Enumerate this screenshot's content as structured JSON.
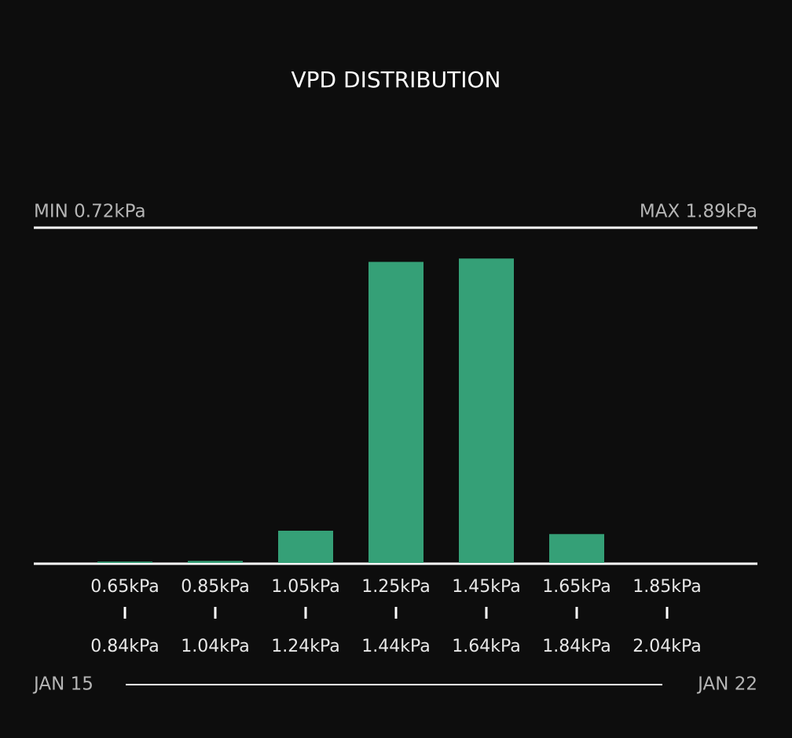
{
  "chart_data": {
    "type": "bar",
    "title": "VPD DISTRIBUTION",
    "min_label": "MIN 0.72kPa",
    "max_label": "MAX 1.89kPa",
    "categories": [
      "0.65kPa",
      "0.85kPa",
      "1.05kPa",
      "1.25kPa",
      "1.45kPa",
      "1.65kPa",
      "1.85kPa"
    ],
    "category_ends": [
      "0.84kPa",
      "1.04kPa",
      "1.24kPa",
      "1.44kPa",
      "1.64kPa",
      "1.84kPa",
      "2.04kPa"
    ],
    "values": [
      0.2,
      0.3,
      4.8,
      44.9,
      45.4,
      4.3,
      0
    ],
    "color": "#35a077",
    "ylim": [
      0,
      50
    ],
    "start_date": "JAN 15",
    "end_date": "JAN 22"
  }
}
